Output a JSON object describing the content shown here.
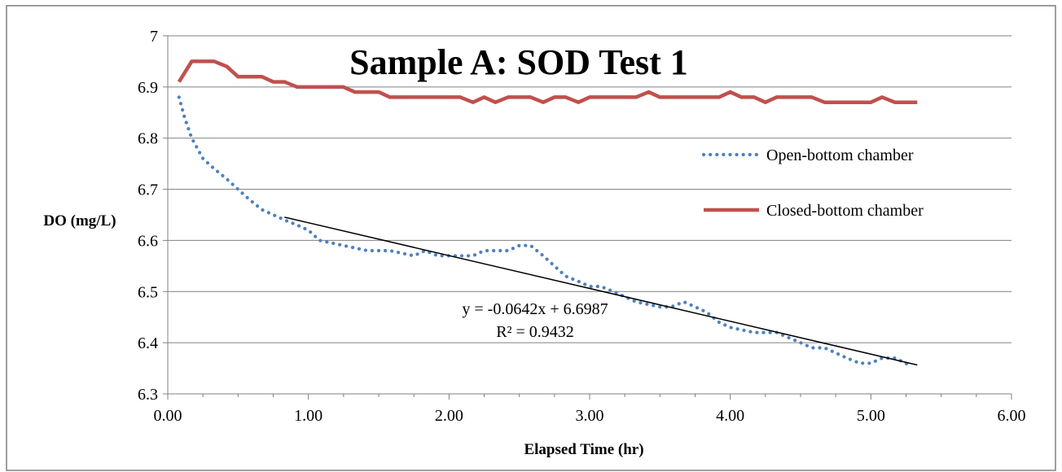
{
  "chart_data": {
    "type": "line",
    "title": "Sample A: SOD Test 1",
    "xlabel": "Elapsed  Time (hr)",
    "ylabel": "DO (mg/L)",
    "xlim": [
      0,
      6
    ],
    "ylim": [
      6.3,
      7.0
    ],
    "x_ticks": [
      "0.00",
      "1.00",
      "2.00",
      "3.00",
      "4.00",
      "5.00",
      "6.00"
    ],
    "y_ticks": [
      "6.3",
      "6.4",
      "6.5",
      "6.6",
      "6.7",
      "6.8",
      "6.9",
      "7"
    ],
    "grid": "horizontal",
    "legend_position": "right",
    "series": [
      {
        "name": "Open-bottom chamber",
        "style": "dotted",
        "color": "#4f81bd",
        "points": [
          [
            0.08,
            6.88
          ],
          [
            0.12,
            6.84
          ],
          [
            0.17,
            6.8
          ],
          [
            0.25,
            6.76
          ],
          [
            0.33,
            6.74
          ],
          [
            0.42,
            6.72
          ],
          [
            0.5,
            6.7
          ],
          [
            0.58,
            6.68
          ],
          [
            0.67,
            6.66
          ],
          [
            0.75,
            6.65
          ],
          [
            0.83,
            6.64
          ],
          [
            0.92,
            6.63
          ],
          [
            1.0,
            6.62
          ],
          [
            1.08,
            6.6
          ],
          [
            1.25,
            6.59
          ],
          [
            1.42,
            6.58
          ],
          [
            1.58,
            6.58
          ],
          [
            1.75,
            6.57
          ],
          [
            1.83,
            6.58
          ],
          [
            1.92,
            6.57
          ],
          [
            2.08,
            6.57
          ],
          [
            2.17,
            6.57
          ],
          [
            2.25,
            6.58
          ],
          [
            2.42,
            6.58
          ],
          [
            2.5,
            6.59
          ],
          [
            2.58,
            6.59
          ],
          [
            2.67,
            6.57
          ],
          [
            2.75,
            6.55
          ],
          [
            2.83,
            6.53
          ],
          [
            2.92,
            6.52
          ],
          [
            3.0,
            6.51
          ],
          [
            3.08,
            6.51
          ],
          [
            3.17,
            6.5
          ],
          [
            3.25,
            6.49
          ],
          [
            3.33,
            6.48
          ],
          [
            3.5,
            6.47
          ],
          [
            3.58,
            6.47
          ],
          [
            3.67,
            6.48
          ],
          [
            3.75,
            6.47
          ],
          [
            3.83,
            6.46
          ],
          [
            3.92,
            6.44
          ],
          [
            4.0,
            6.43
          ],
          [
            4.17,
            6.42
          ],
          [
            4.33,
            6.42
          ],
          [
            4.5,
            6.4
          ],
          [
            4.58,
            6.39
          ],
          [
            4.67,
            6.39
          ],
          [
            4.75,
            6.38
          ],
          [
            4.83,
            6.37
          ],
          [
            4.92,
            6.36
          ],
          [
            5.0,
            6.36
          ],
          [
            5.08,
            6.37
          ],
          [
            5.17,
            6.37
          ],
          [
            5.25,
            6.36
          ],
          [
            5.28,
            6.35
          ]
        ]
      },
      {
        "name": "Closed-bottom chamber",
        "style": "solid",
        "color": "#c0504d",
        "points": [
          [
            0.08,
            6.91
          ],
          [
            0.17,
            6.95
          ],
          [
            0.25,
            6.95
          ],
          [
            0.33,
            6.95
          ],
          [
            0.42,
            6.94
          ],
          [
            0.5,
            6.92
          ],
          [
            0.67,
            6.92
          ],
          [
            0.75,
            6.91
          ],
          [
            0.83,
            6.91
          ],
          [
            0.92,
            6.9
          ],
          [
            1.0,
            6.9
          ],
          [
            1.25,
            6.9
          ],
          [
            1.33,
            6.89
          ],
          [
            1.5,
            6.89
          ],
          [
            1.58,
            6.88
          ],
          [
            1.75,
            6.88
          ],
          [
            2.0,
            6.88
          ],
          [
            2.08,
            6.88
          ],
          [
            2.17,
            6.87
          ],
          [
            2.25,
            6.88
          ],
          [
            2.33,
            6.87
          ],
          [
            2.42,
            6.88
          ],
          [
            2.58,
            6.88
          ],
          [
            2.67,
            6.87
          ],
          [
            2.75,
            6.88
          ],
          [
            2.83,
            6.88
          ],
          [
            2.92,
            6.87
          ],
          [
            3.0,
            6.88
          ],
          [
            3.17,
            6.88
          ],
          [
            3.33,
            6.88
          ],
          [
            3.42,
            6.89
          ],
          [
            3.5,
            6.88
          ],
          [
            3.67,
            6.88
          ],
          [
            3.92,
            6.88
          ],
          [
            4.0,
            6.89
          ],
          [
            4.08,
            6.88
          ],
          [
            4.17,
            6.88
          ],
          [
            4.25,
            6.87
          ],
          [
            4.33,
            6.88
          ],
          [
            4.58,
            6.88
          ],
          [
            4.67,
            6.87
          ],
          [
            4.75,
            6.87
          ],
          [
            5.0,
            6.87
          ],
          [
            5.08,
            6.88
          ],
          [
            5.17,
            6.87
          ],
          [
            5.33,
            6.87
          ]
        ]
      }
    ],
    "trendline": {
      "series": "Open-bottom chamber",
      "equation": "y = -0.0642x  + 6.6987",
      "r_squared": "R² = 0.9432",
      "slope": -0.0642,
      "intercept": 6.6987,
      "x_range": [
        0.83,
        5.33
      ],
      "color": "#000000"
    }
  }
}
